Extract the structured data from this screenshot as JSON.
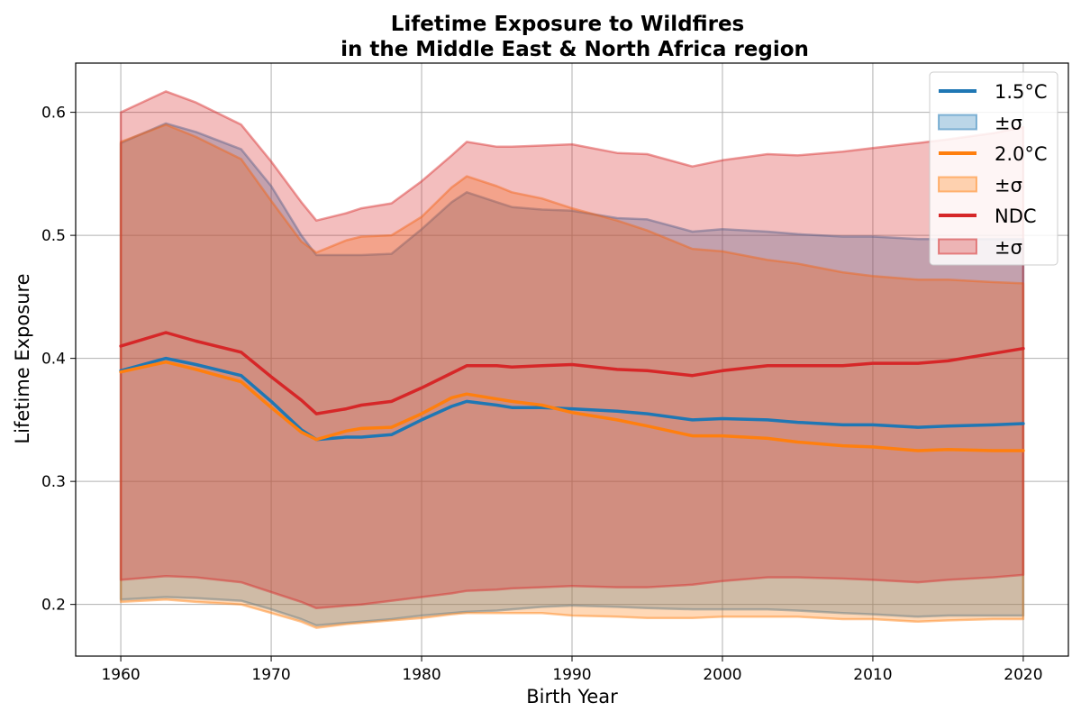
{
  "chart_data": {
    "type": "line",
    "title": "Lifetime Exposure to Wildfires",
    "subtitle": "in the Middle East & North Africa region",
    "xlabel": "Birth Year",
    "ylabel": "Lifetime Exposure",
    "xlim": [
      1957,
      2023
    ],
    "ylim": [
      0.158,
      0.64
    ],
    "xticks": [
      1960,
      1970,
      1980,
      1990,
      2000,
      2010,
      2020
    ],
    "yticks": [
      0.2,
      0.3,
      0.4,
      0.5,
      0.6
    ],
    "xtick_labels": [
      "1960",
      "1970",
      "1980",
      "1990",
      "2000",
      "2010",
      "2020"
    ],
    "ytick_labels": [
      "0.2",
      "0.3",
      "0.4",
      "0.5",
      "0.6"
    ],
    "grid": true,
    "legend_position": "top-right",
    "legend": [
      "1.5°C",
      "±σ",
      "2.0°C",
      "±σ",
      "NDC",
      "±σ"
    ],
    "x": [
      1960,
      1963,
      1965,
      1968,
      1970,
      1972,
      1973,
      1975,
      1976,
      1978,
      1980,
      1982,
      1983,
      1985,
      1986,
      1988,
      1990,
      1993,
      1995,
      1998,
      2000,
      2003,
      2005,
      2008,
      2010,
      2013,
      2015,
      2018,
      2020
    ],
    "series": [
      {
        "name": "1.5°C",
        "color": "#1f77b4",
        "values": [
          0.39,
          0.4,
          0.395,
          0.386,
          0.365,
          0.342,
          0.334,
          0.336,
          0.336,
          0.338,
          0.35,
          0.361,
          0.365,
          0.362,
          0.36,
          0.36,
          0.359,
          0.357,
          0.355,
          0.35,
          0.351,
          0.35,
          0.348,
          0.346,
          0.346,
          0.344,
          0.345,
          0.346,
          0.347
        ],
        "upper": [
          0.575,
          0.591,
          0.584,
          0.57,
          0.54,
          0.5,
          0.484,
          0.484,
          0.484,
          0.485,
          0.505,
          0.527,
          0.535,
          0.527,
          0.523,
          0.521,
          0.52,
          0.514,
          0.513,
          0.503,
          0.505,
          0.503,
          0.501,
          0.499,
          0.499,
          0.497,
          0.497,
          0.497,
          0.497
        ],
        "lower": [
          0.204,
          0.206,
          0.205,
          0.203,
          0.196,
          0.188,
          0.183,
          0.185,
          0.186,
          0.188,
          0.191,
          0.193,
          0.194,
          0.195,
          0.196,
          0.198,
          0.199,
          0.198,
          0.197,
          0.196,
          0.196,
          0.196,
          0.195,
          0.193,
          0.192,
          0.19,
          0.191,
          0.191,
          0.191
        ]
      },
      {
        "name": "2.0°C",
        "color": "#ff7f0e",
        "values": [
          0.389,
          0.397,
          0.391,
          0.381,
          0.36,
          0.34,
          0.334,
          0.341,
          0.343,
          0.344,
          0.355,
          0.368,
          0.371,
          0.367,
          0.365,
          0.362,
          0.356,
          0.35,
          0.345,
          0.337,
          0.337,
          0.335,
          0.332,
          0.329,
          0.328,
          0.325,
          0.326,
          0.325,
          0.325
        ],
        "upper": [
          0.576,
          0.59,
          0.58,
          0.562,
          0.528,
          0.495,
          0.486,
          0.496,
          0.499,
          0.5,
          0.515,
          0.539,
          0.548,
          0.54,
          0.535,
          0.53,
          0.522,
          0.512,
          0.504,
          0.489,
          0.487,
          0.48,
          0.477,
          0.47,
          0.467,
          0.464,
          0.464,
          0.462,
          0.461
        ],
        "lower": [
          0.202,
          0.204,
          0.202,
          0.2,
          0.193,
          0.186,
          0.181,
          0.184,
          0.185,
          0.187,
          0.189,
          0.192,
          0.193,
          0.193,
          0.193,
          0.193,
          0.191,
          0.19,
          0.189,
          0.189,
          0.19,
          0.19,
          0.19,
          0.188,
          0.188,
          0.186,
          0.187,
          0.188,
          0.188
        ]
      },
      {
        "name": "NDC",
        "color": "#d62728",
        "values": [
          0.41,
          0.421,
          0.414,
          0.405,
          0.385,
          0.366,
          0.355,
          0.359,
          0.362,
          0.365,
          0.376,
          0.388,
          0.394,
          0.394,
          0.393,
          0.394,
          0.395,
          0.391,
          0.39,
          0.386,
          0.39,
          0.394,
          0.394,
          0.394,
          0.396,
          0.396,
          0.398,
          0.404,
          0.408
        ],
        "upper": [
          0.6,
          0.617,
          0.608,
          0.59,
          0.56,
          0.527,
          0.512,
          0.518,
          0.522,
          0.526,
          0.544,
          0.565,
          0.576,
          0.572,
          0.572,
          0.573,
          0.574,
          0.567,
          0.566,
          0.556,
          0.561,
          0.566,
          0.565,
          0.568,
          0.571,
          0.575,
          0.578,
          0.583,
          0.588
        ],
        "lower": [
          0.22,
          0.223,
          0.222,
          0.218,
          0.21,
          0.202,
          0.197,
          0.199,
          0.2,
          0.203,
          0.206,
          0.209,
          0.211,
          0.212,
          0.213,
          0.214,
          0.215,
          0.214,
          0.214,
          0.216,
          0.219,
          0.222,
          0.222,
          0.221,
          0.22,
          0.218,
          0.22,
          0.222,
          0.224
        ]
      }
    ]
  }
}
